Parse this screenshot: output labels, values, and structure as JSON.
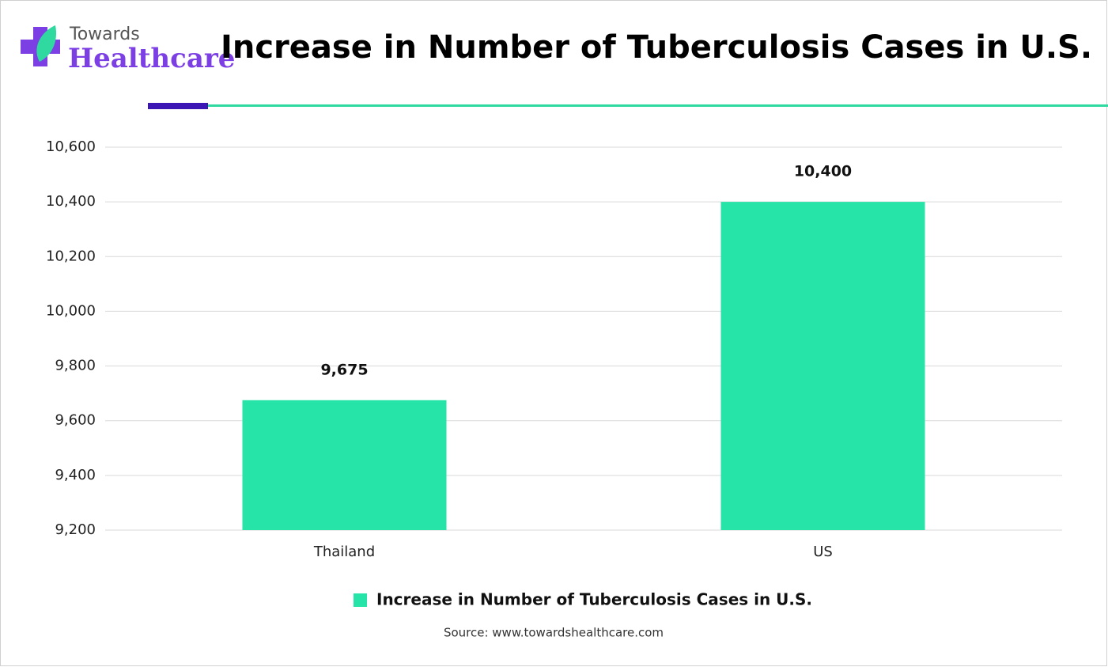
{
  "logo": {
    "top": "Towards",
    "bottom": "Healthcare"
  },
  "chart_data": {
    "type": "bar",
    "title": "Increase in Number of Tuberculosis Cases in U.S.",
    "categories": [
      "Thailand",
      "US"
    ],
    "series": [
      {
        "name": "Increase in Number of Tuberculosis Cases in U.S.",
        "color": "#26e3a8",
        "values": [
          9675,
          10400
        ],
        "value_labels": [
          "9,675",
          "10,400"
        ]
      }
    ],
    "ylim": [
      9200,
      10600
    ],
    "yticks": [
      {
        "value": 9200,
        "label": "9,200"
      },
      {
        "value": 9400,
        "label": "9,400"
      },
      {
        "value": 9600,
        "label": "9,600"
      },
      {
        "value": 9800,
        "label": "9,800"
      },
      {
        "value": 10000,
        "label": "10,000"
      },
      {
        "value": 10200,
        "label": "10,200"
      },
      {
        "value": 10400,
        "label": "10,400"
      },
      {
        "value": 10600,
        "label": "10,600"
      }
    ],
    "grid": true,
    "legend": "bottom",
    "source": "Source: www.towardshealthcare.com"
  }
}
